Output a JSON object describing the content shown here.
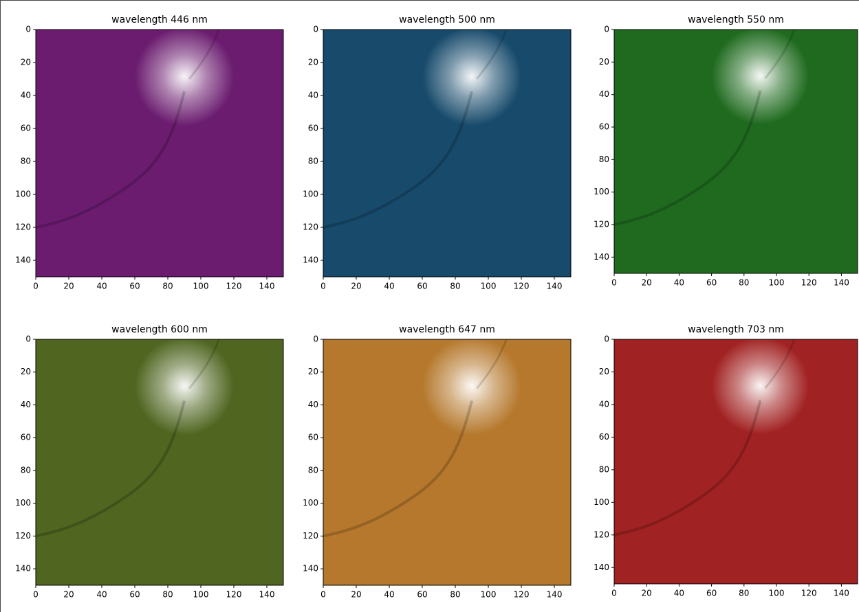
{
  "chart_data": [
    {
      "type": "image",
      "title": "wavelength 446 nm",
      "color": "#6b1c6f",
      "xlim": [
        0,
        150
      ],
      "ylim": [
        150,
        0
      ],
      "xticks": [
        0,
        20,
        40,
        60,
        80,
        100,
        120,
        140
      ],
      "yticks": [
        0,
        20,
        40,
        60,
        80,
        100,
        120,
        140
      ]
    },
    {
      "type": "image",
      "title": "wavelength 500 nm",
      "color": "#174a6b",
      "xlim": [
        0,
        150
      ],
      "ylim": [
        150,
        0
      ],
      "xticks": [
        0,
        20,
        40,
        60,
        80,
        100,
        120,
        140
      ],
      "yticks": [
        0,
        20,
        40,
        60,
        80,
        100,
        120,
        140
      ]
    },
    {
      "type": "image",
      "title": "wavelength 550 nm",
      "color": "#1f6a1f",
      "xlim": [
        0,
        150
      ],
      "ylim": [
        150,
        0
      ],
      "xticks": [
        0,
        20,
        40,
        60,
        80,
        100,
        120,
        140
      ],
      "yticks": [
        0,
        20,
        40,
        60,
        80,
        100,
        120,
        140
      ]
    },
    {
      "type": "image",
      "title": "wavelength 600 nm",
      "color": "#4f6520",
      "xlim": [
        0,
        150
      ],
      "ylim": [
        150,
        0
      ],
      "xticks": [
        0,
        20,
        40,
        60,
        80,
        100,
        120,
        140
      ],
      "yticks": [
        0,
        20,
        40,
        60,
        80,
        100,
        120,
        140
      ]
    },
    {
      "type": "image",
      "title": "wavelength 647 nm",
      "color": "#b5782c",
      "xlim": [
        0,
        150
      ],
      "ylim": [
        150,
        0
      ],
      "xticks": [
        0,
        20,
        40,
        60,
        80,
        100,
        120,
        140
      ],
      "yticks": [
        0,
        20,
        40,
        60,
        80,
        100,
        120,
        140
      ]
    },
    {
      "type": "image",
      "title": "wavelength 703 nm",
      "color": "#a12222",
      "xlim": [
        0,
        150
      ],
      "ylim": [
        150,
        0
      ],
      "xticks": [
        0,
        20,
        40,
        60,
        80,
        100,
        120,
        140
      ],
      "yticks": [
        0,
        20,
        40,
        60,
        80,
        100,
        120,
        140
      ]
    }
  ]
}
